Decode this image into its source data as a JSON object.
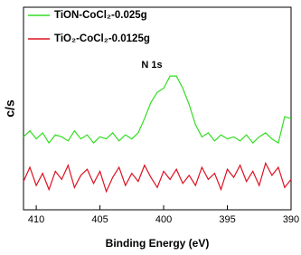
{
  "chart_data": {
    "type": "line",
    "xlabel": "Binding Energy (eV)",
    "ylabel": "c/s",
    "annotation": "N 1s",
    "x": [
      411,
      410.5,
      410,
      409.5,
      409,
      408.5,
      408,
      407.5,
      407,
      406.5,
      406,
      405.5,
      405,
      404.5,
      404,
      403.5,
      403,
      402.5,
      402,
      401.5,
      401,
      400.5,
      400,
      399.5,
      399,
      398.5,
      398,
      397.5,
      397,
      396.5,
      396,
      395.5,
      395,
      394.5,
      394,
      393.5,
      393,
      392.5,
      392,
      391.5,
      391,
      390.5,
      390
    ],
    "series": [
      {
        "name": "TiON-CoCl₂-0.025g",
        "color": "#33dd22",
        "values": [
          36,
          39,
          35,
          38,
          33,
          37,
          36,
          34,
          39,
          35,
          37,
          33,
          36,
          35,
          38,
          34,
          37,
          35,
          38,
          45,
          53,
          58,
          60,
          66,
          66,
          60,
          52,
          42,
          36,
          38,
          34,
          37,
          35,
          36,
          34,
          37,
          33,
          36,
          38,
          35,
          33,
          46,
          45
        ]
      },
      {
        "name": "TiO₂-CoCl₂-0.0125g",
        "color": "#dd1122",
        "values": [
          14,
          21,
          12,
          18,
          10,
          19,
          15,
          22,
          11,
          17,
          20,
          13,
          19,
          9,
          16,
          21,
          12,
          18,
          14,
          22,
          16,
          11,
          19,
          15,
          20,
          13,
          17,
          12,
          21,
          15,
          18,
          10,
          20,
          16,
          22,
          14,
          19,
          12,
          23,
          17,
          21,
          11,
          15
        ]
      }
    ],
    "xlim": [
      411,
      390
    ],
    "xticks": [
      410,
      405,
      400,
      395,
      390
    ],
    "ylim": [
      0,
      100
    ]
  }
}
